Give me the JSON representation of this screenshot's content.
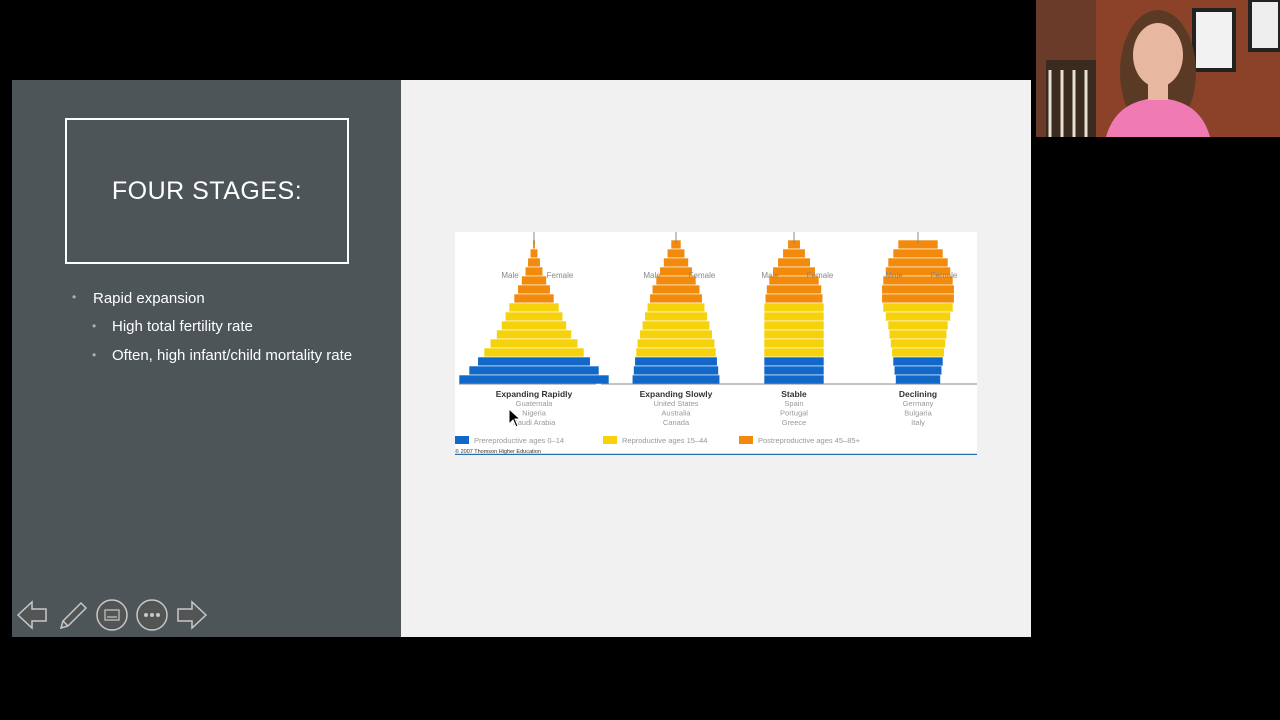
{
  "slide": {
    "title": "FOUR STAGES:",
    "bullets": {
      "level1": "Rapid expansion",
      "sub1": "High total fertility rate",
      "sub2": "Often, high infant/child mortality rate"
    }
  },
  "chart_data": {
    "type": "bar",
    "subtype": "population-pyramids",
    "panels": [
      {
        "title": "Expanding Rapidly",
        "countries": [
          "Guatemala",
          "Nigeria",
          "Saudi Arabia"
        ],
        "bars_top_to_bottom": [
          0.5,
          1.5,
          2.5,
          3.5,
          5,
          6.5,
          8,
          10,
          11.5,
          13,
          15,
          17.5,
          20,
          22.5,
          26,
          30
        ]
      },
      {
        "title": "Expanding Slowly",
        "countries": [
          "United States",
          "Australia",
          "Canada"
        ],
        "bars_top_to_bottom": [
          2,
          3.5,
          5,
          6.5,
          8,
          9.5,
          10.5,
          11.5,
          12.5,
          13.5,
          14.5,
          15.5,
          16,
          16.5,
          17,
          17.5
        ]
      },
      {
        "title": "Stable",
        "countries": [
          "Spain",
          "Portugal",
          "Greece"
        ],
        "bars_top_to_bottom": [
          2.5,
          4.5,
          6.5,
          8.5,
          10,
          11,
          11.5,
          12,
          12,
          12,
          12,
          12,
          12,
          12,
          12,
          12
        ]
      },
      {
        "title": "Declining",
        "countries": [
          "Germany",
          "Bulgaria",
          "Italy"
        ],
        "bars_top_to_bottom": [
          8,
          10,
          12,
          13,
          14,
          14.5,
          14.5,
          14,
          13,
          12,
          11.5,
          11,
          10.5,
          10,
          9.5,
          9
        ]
      }
    ],
    "side_labels": {
      "male": "Male",
      "female": "Female"
    },
    "legend": [
      {
        "label": "Prereproductive ages 0–14",
        "color": "#1168c8"
      },
      {
        "label": "Reproductive ages 15–44",
        "color": "#f5d20c"
      },
      {
        "label": "Postreproductive ages 45–85+",
        "color": "#f28a0c"
      }
    ],
    "copyright": "© 2007 Thomson Higher Education"
  },
  "nav": {
    "icons": [
      "previous-slide-icon",
      "pen-icon",
      "subtitles-icon",
      "more-options-icon",
      "next-slide-icon"
    ]
  },
  "webcam": {
    "description": "presenter video"
  }
}
